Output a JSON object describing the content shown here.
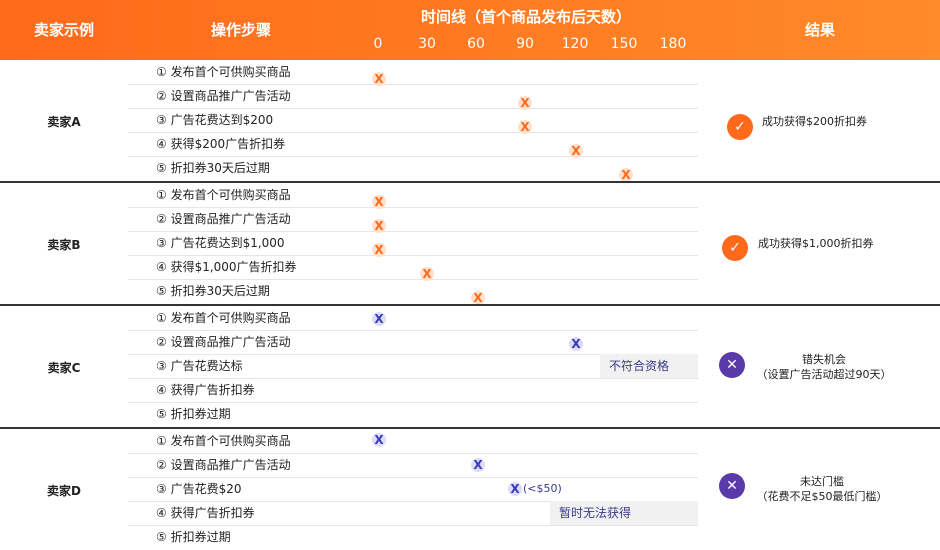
{
  "header": {
    "seller_col": "卖家示例",
    "steps_col": "操作步骤",
    "timeline_title": "时间线（首个商品发布后天数）",
    "ticks": [
      "0",
      "30",
      "60",
      "90",
      "120",
      "150",
      "180"
    ],
    "result_col": "结果"
  },
  "sellers": [
    {
      "label": "卖家A",
      "steps": [
        "① 发布首个可供购买商品",
        "② 设置商品推广广告活动",
        "③ 广告花费达到$200",
        "④ 获得$200广告折扣券",
        "⑤ 折扣券30天后过期"
      ],
      "mark_days": [
        2,
        90,
        90,
        120,
        150
      ],
      "mark_symbol": "X",
      "result": {
        "icon": "check-icon",
        "line1": "成功获得$200折扣券",
        "line2": ""
      }
    },
    {
      "label": "卖家B",
      "steps": [
        "① 发布首个可供购买商品",
        "② 设置商品推广广告活动",
        "③ 广告花费达到$1,000",
        "④ 获得$1,000广告折扣券",
        "⑤ 折扣券30天后过期"
      ],
      "mark_days": [
        2,
        2,
        2,
        30,
        60
      ],
      "mark_symbol": "X",
      "result": {
        "icon": "check-icon",
        "line1": "成功获得$1,000折扣券",
        "line2": ""
      }
    },
    {
      "label": "卖家C",
      "steps": [
        "① 发布首个可供购买商品",
        "② 设置商品推广广告活动",
        "③ 广告花费达标",
        "④ 获得广告折扣券",
        "⑤ 折扣券过期"
      ],
      "mark_days": [
        2,
        120,
        null,
        null,
        null
      ],
      "mark_symbol": "X",
      "note": "不符合资格",
      "result": {
        "icon": "cross-icon",
        "line1": "错失机会",
        "line2": "（设置广告活动超过90天）"
      }
    },
    {
      "label": "卖家D",
      "steps": [
        "① 发布首个可供购买商品",
        "② 设置商品推广广告活动",
        "③ 广告花费$20",
        "④ 获得广告折扣券",
        "⑤ 折扣券过期"
      ],
      "mark_days": [
        2,
        60,
        82,
        null,
        null
      ],
      "mark_symbol": "X",
      "inline_note": "(<$50)",
      "note": "暂时无法获得",
      "result": {
        "icon": "cross-icon",
        "line1": "未达门槛",
        "line2": "（花费不足$50最低门槛）"
      }
    }
  ],
  "colors": {
    "accent": "#ff6a1a",
    "purple": "#5a3aa8",
    "mark_purple": "#3a3ab8"
  }
}
